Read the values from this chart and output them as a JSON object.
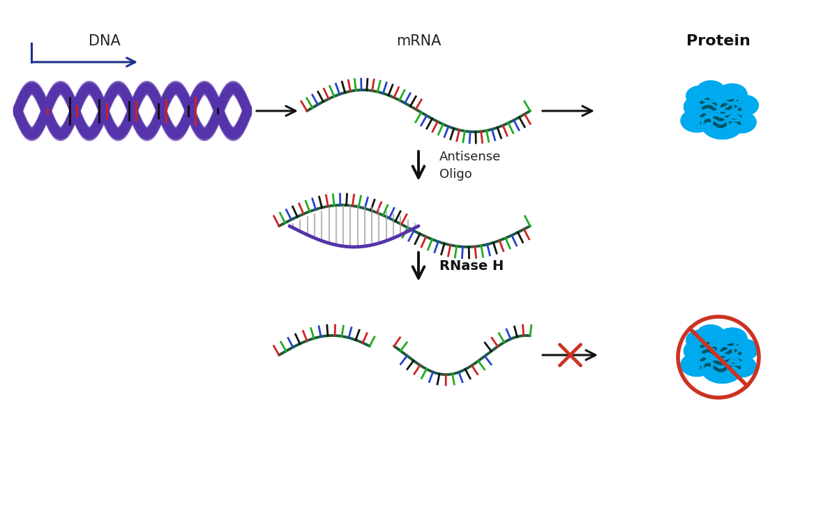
{
  "background_color": "#ffffff",
  "dna_backbone_color": "#5533aa",
  "dna_tick_colors": [
    "#cc2222",
    "#22aa22",
    "#2244cc",
    "#111111"
  ],
  "mrna_strand_color": "#1a5c3a",
  "mrna_tick_colors": [
    "#cc2222",
    "#22aa22",
    "#2244cc",
    "#111111"
  ],
  "aso_color": "#5533aa",
  "arrow_color": "#111111",
  "protein_outer_color": "#00aaee",
  "protein_inner_color": "#005566",
  "no_symbol_color": "#cc3322",
  "text_dna": "DNA",
  "text_mrna": "mRNA",
  "text_protein": "Protein",
  "text_antisense": "Antisense\nOligo",
  "text_rnase": "RNase H",
  "dna_arrow_color": "#1a2f88"
}
